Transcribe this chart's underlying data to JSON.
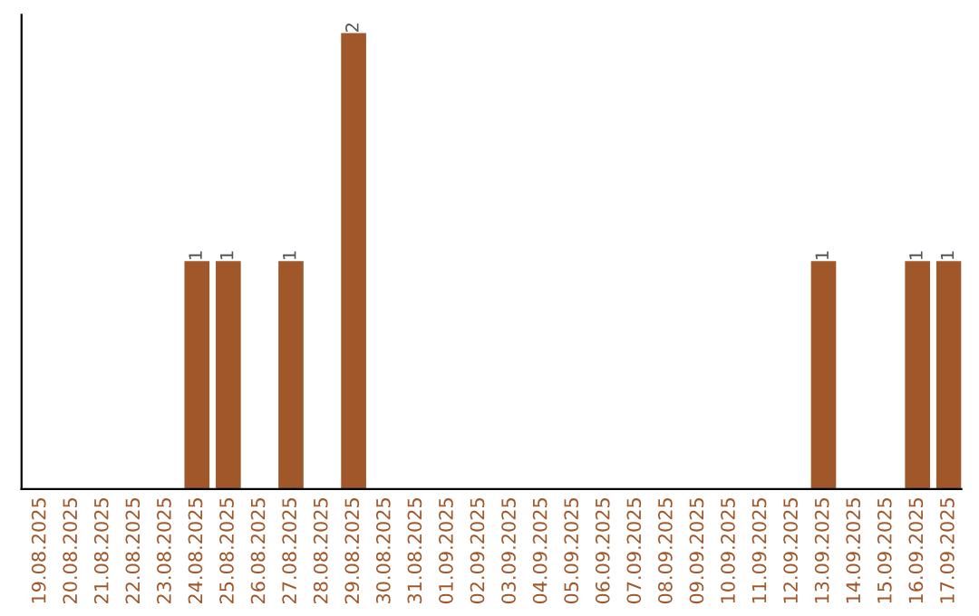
{
  "chart_data": {
    "type": "bar",
    "categories": [
      "19.08.2025",
      "20.08.2025",
      "21.08.2025",
      "22.08.2025",
      "23.08.2025",
      "24.08.2025",
      "25.08.2025",
      "26.08.2025",
      "27.08.2025",
      "28.08.2025",
      "29.08.2025",
      "30.08.2025",
      "31.08.2025",
      "01.09.2025",
      "02.09.2025",
      "03.09.2025",
      "04.09.2025",
      "05.09.2025",
      "06.09.2025",
      "07.09.2025",
      "08.09.2025",
      "09.09.2025",
      "10.09.2025",
      "11.09.2025",
      "12.09.2025",
      "13.09.2025",
      "14.09.2025",
      "15.09.2025",
      "16.09.2025",
      "17.09.2025"
    ],
    "values": [
      0,
      0,
      0,
      0,
      0,
      1,
      1,
      0,
      1,
      0,
      2,
      0,
      0,
      0,
      0,
      0,
      0,
      0,
      0,
      0,
      0,
      0,
      0,
      0,
      0,
      1,
      0,
      0,
      1,
      1
    ],
    "value_labels": [
      null,
      null,
      null,
      null,
      null,
      "1",
      "1",
      null,
      "1",
      null,
      "2",
      null,
      null,
      null,
      null,
      null,
      null,
      null,
      null,
      null,
      null,
      null,
      null,
      null,
      null,
      "1",
      null,
      null,
      "1",
      "1"
    ],
    "color": "#a0582a",
    "grid": false,
    "legend": false
  }
}
